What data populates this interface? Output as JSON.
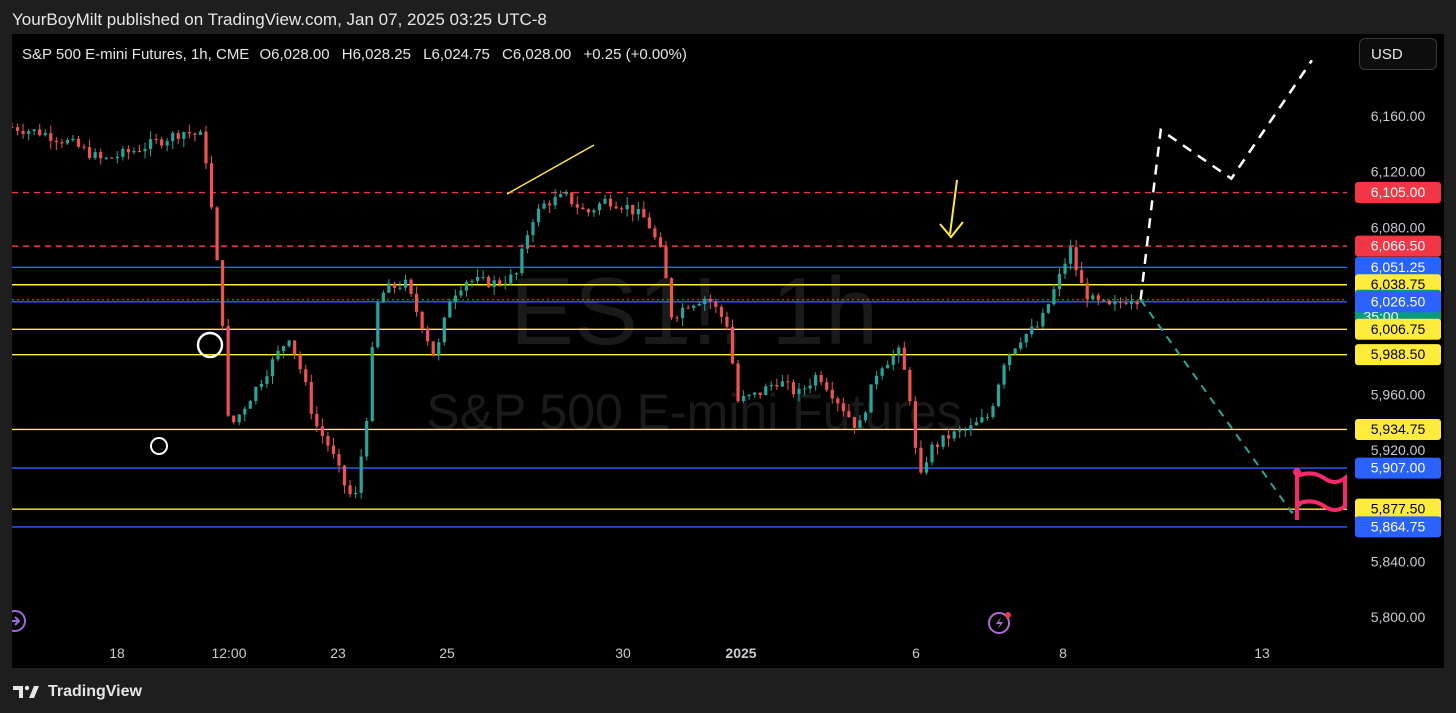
{
  "published_line": "YourBoyMilt published on TradingView.com, Jan 07, 2025 03:25 UTC-8",
  "legend": {
    "symbol": "S&P 500 E-mini Futures, 1h, CME",
    "open_key": "O",
    "open": "6,028.00",
    "high_key": "H",
    "high": "6,028.25",
    "low_key": "L",
    "low": "6,024.75",
    "close_key": "C",
    "close": "6,028.00",
    "change": "+0.25 (+0.00%)"
  },
  "currency": "USD",
  "watermark": {
    "symbol": "ES1!, 1h",
    "name": "S&P 500 E-mini Futures"
  },
  "footer": {
    "brand": "TradingView"
  },
  "colors": {
    "up": "#26a69a",
    "down": "#ef5350",
    "yellow": "#ffeb3b",
    "blue": "#2962ff",
    "red_dash": "#f23645",
    "teal_dash": "#26a69a",
    "white": "#ffffff",
    "flag": "#f7296c"
  },
  "chart_data": {
    "type": "line",
    "title": "S&P 500 E-mini Futures, 1h, CME",
    "ylim": [
      5780,
      6210
    ],
    "y_axis_ticks": [
      "6,160.00",
      "6,120.00",
      "6,080.00",
      "5,960.00",
      "5,920.00",
      "5,840.00",
      "5,800.00"
    ],
    "y_axis_tick_values": [
      6160,
      6120,
      6080,
      5960,
      5920,
      5840,
      5800
    ],
    "x_axis_ticks": [
      "18",
      "12:00",
      "23",
      "25",
      "30",
      "2025",
      "6",
      "8",
      "13"
    ],
    "price_path": [
      [
        0,
        6152
      ],
      [
        3,
        6148
      ],
      [
        6,
        6140
      ],
      [
        9,
        6128
      ],
      [
        12,
        6135
      ],
      [
        15,
        6143
      ],
      [
        17,
        6149
      ],
      [
        19,
        6145
      ],
      [
        20,
        6080
      ],
      [
        21,
        6005
      ],
      [
        21.5,
        5935
      ],
      [
        22.5,
        5945
      ],
      [
        24,
        5962
      ],
      [
        26,
        5985
      ],
      [
        27.5,
        6002
      ],
      [
        29,
        5970
      ],
      [
        30,
        5940
      ],
      [
        31.5,
        5922
      ],
      [
        33,
        5895
      ],
      [
        34,
        5882
      ],
      [
        35.5,
        5960
      ],
      [
        36,
        6020
      ],
      [
        37,
        6035
      ],
      [
        39,
        6040
      ],
      [
        41,
        6005
      ],
      [
        42,
        5985
      ],
      [
        43.5,
        6030
      ],
      [
        45,
        6042
      ],
      [
        48,
        6040
      ],
      [
        50,
        6045
      ],
      [
        51.5,
        6085
      ],
      [
        53,
        6098
      ],
      [
        55,
        6102
      ],
      [
        57,
        6090
      ],
      [
        59,
        6100
      ],
      [
        61,
        6095
      ],
      [
        63,
        6085
      ],
      [
        64.5,
        6060
      ],
      [
        65.5,
        6015
      ],
      [
        67,
        6025
      ],
      [
        69,
        6030
      ],
      [
        71,
        6010
      ],
      [
        72,
        5955
      ],
      [
        74,
        5960
      ],
      [
        76,
        5970
      ],
      [
        78,
        5960
      ],
      [
        80,
        5975
      ],
      [
        82,
        5955
      ],
      [
        84,
        5935
      ],
      [
        86,
        5980
      ],
      [
        88,
        5990
      ],
      [
        89,
        5965
      ],
      [
        90,
        5895
      ],
      [
        91,
        5920
      ],
      [
        93,
        5930
      ],
      [
        95,
        5935
      ],
      [
        97,
        5945
      ],
      [
        98.5,
        5985
      ],
      [
        100,
        6000
      ],
      [
        102,
        6010
      ],
      [
        104,
        6045
      ],
      [
        105,
        6065
      ],
      [
        106,
        6040
      ],
      [
        107,
        6028
      ],
      [
        109,
        6022
      ],
      [
        111,
        6030
      ],
      [
        112,
        6028
      ]
    ],
    "horizontal_levels": [
      {
        "price": 6105.0,
        "label": "6,105.00",
        "color": "#f23645",
        "style": "dashed"
      },
      {
        "price": 6066.5,
        "label": "6,066.50",
        "color": "#f23645",
        "style": "dashed"
      },
      {
        "price": 6051.25,
        "label": "6,051.25",
        "color": "#2962ff",
        "style": "solid"
      },
      {
        "price": 6038.75,
        "label": "6,038.75",
        "color": "#ffeb3b",
        "style": "solid"
      },
      {
        "price": 6028.0,
        "label": "6,028.00",
        "color": "#26a69a",
        "style": "dotted",
        "countdown": "35:00"
      },
      {
        "price": 6026.5,
        "label": "6,026.50",
        "color": "#2962ff",
        "style": "solid"
      },
      {
        "price": 6006.75,
        "label": "6,006.75",
        "color": "#ffeb3b",
        "style": "solid"
      },
      {
        "price": 5988.5,
        "label": "5,988.50",
        "color": "#ffeb3b",
        "style": "solid"
      },
      {
        "price": 5934.75,
        "label": "5,934.75",
        "color": "#ffeb3b",
        "style": "solid"
      },
      {
        "price": 5907.0,
        "label": "5,907.00",
        "color": "#2962ff",
        "style": "solid"
      },
      {
        "price": 5877.5,
        "label": "5,877.50",
        "color": "#ffeb3b",
        "style": "solid"
      },
      {
        "price": 5864.75,
        "label": "5,864.75",
        "color": "#2962ff",
        "style": "solid"
      }
    ],
    "projection_up": [
      [
        112,
        6028
      ],
      [
        113,
        6090
      ],
      [
        114,
        6150
      ],
      [
        121,
        6115
      ],
      [
        129,
        6200
      ]
    ],
    "projection_down": [
      [
        112,
        6028
      ],
      [
        127,
        5875
      ],
      [
        128.5,
        5885
      ]
    ],
    "grid": false,
    "legend": "top-left"
  }
}
